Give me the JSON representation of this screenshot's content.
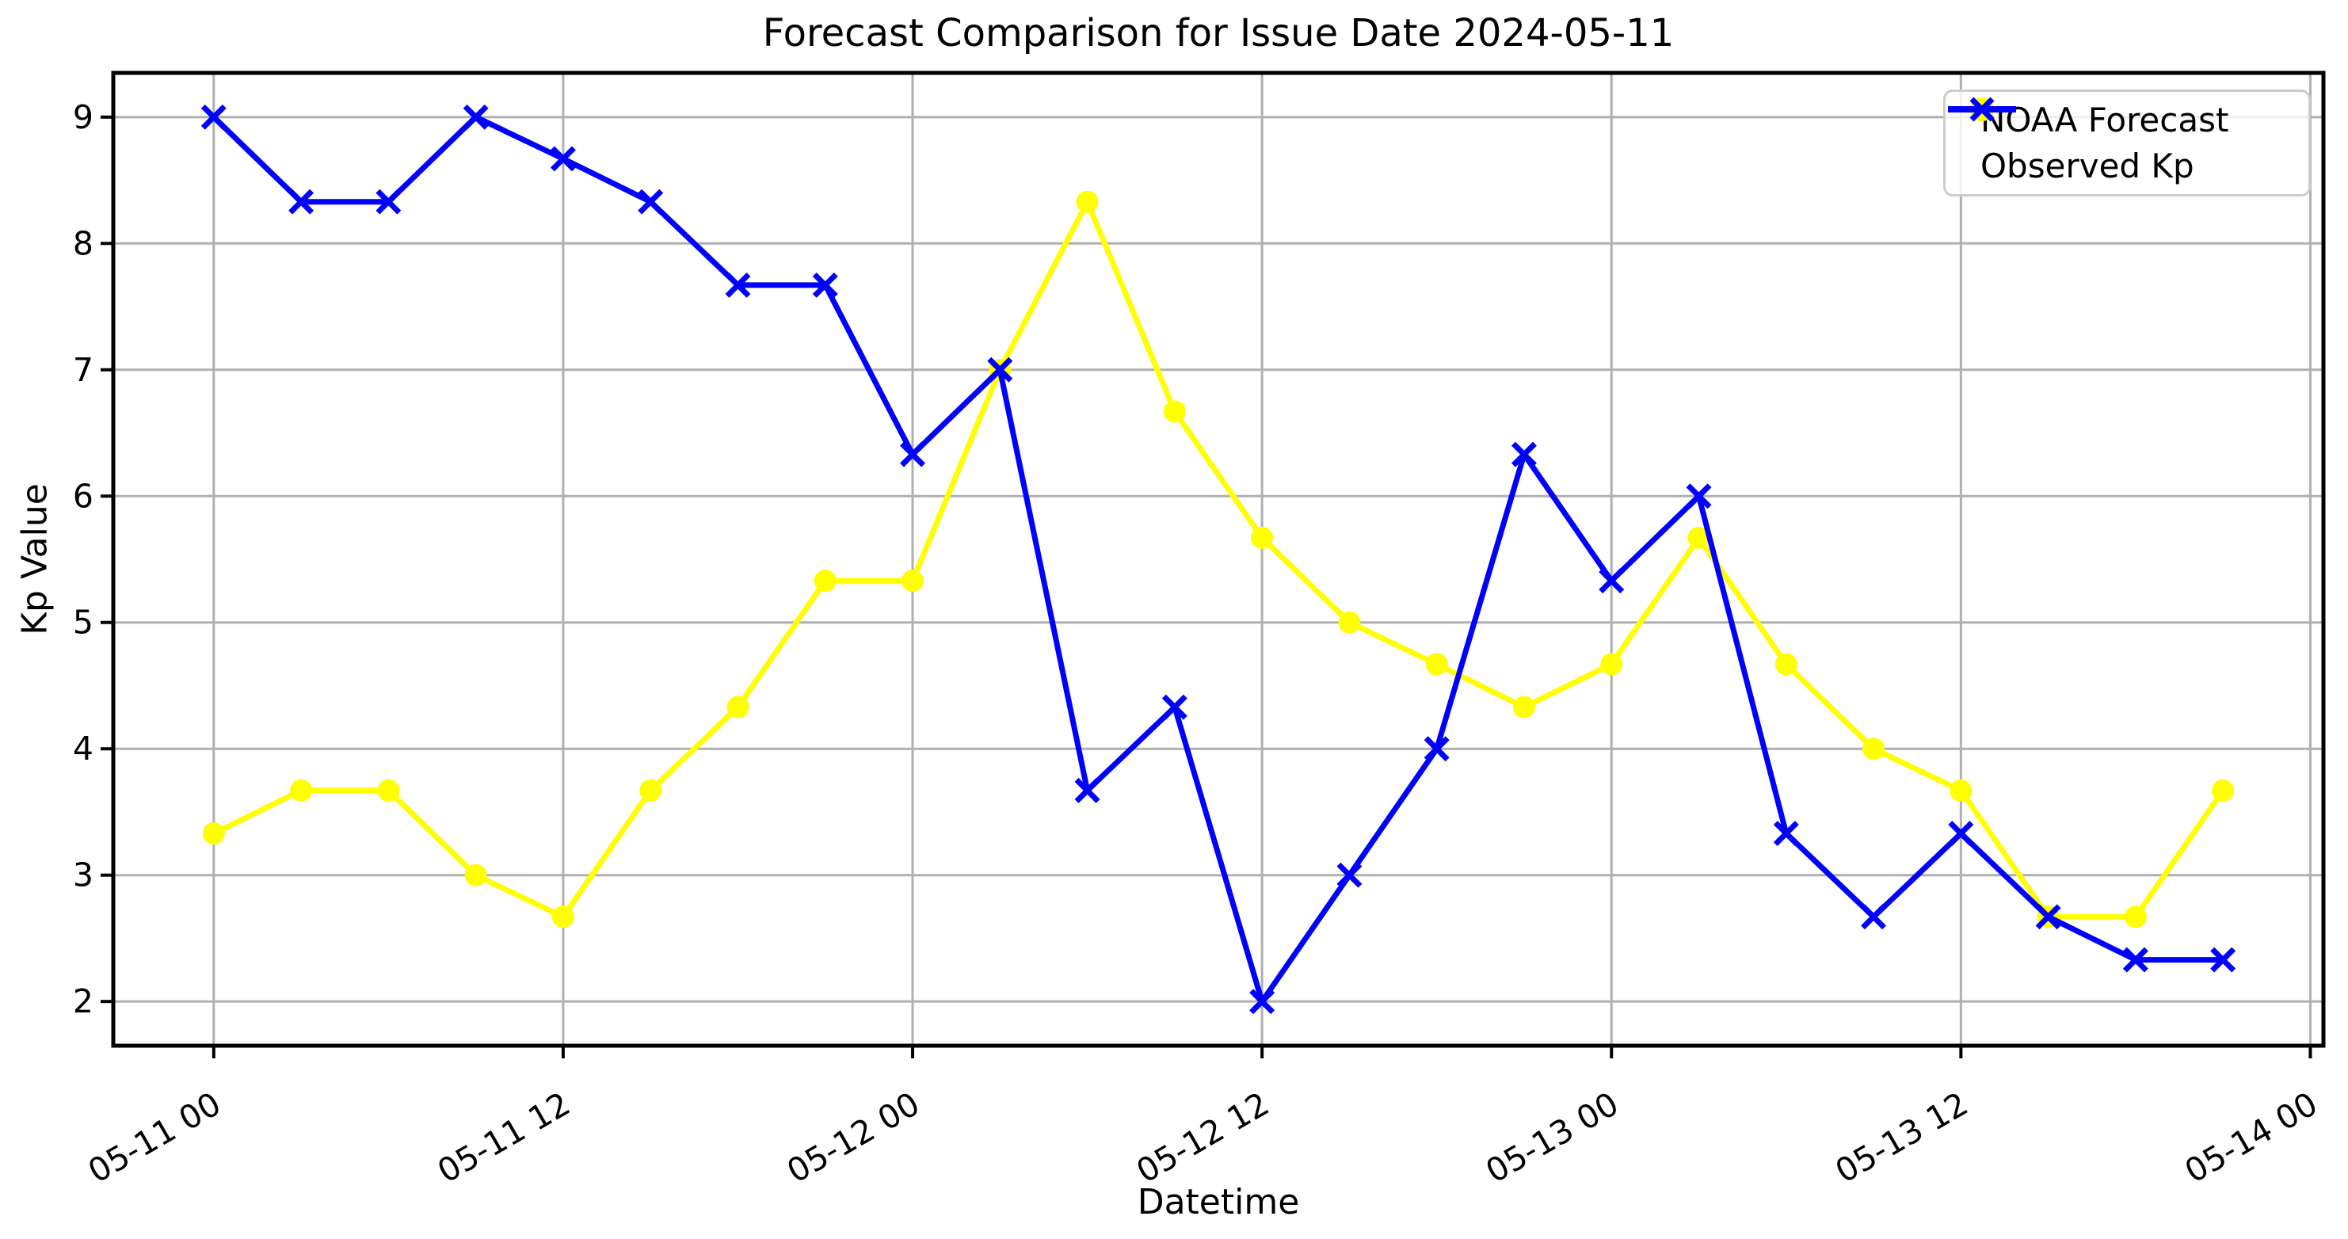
{
  "chart_data": {
    "type": "line",
    "title": "Forecast Comparison for Issue Date 2024-05-11",
    "xlabel": "Datetime",
    "ylabel": "Kp Value",
    "x": [
      "05-11 00",
      "05-11 03",
      "05-11 06",
      "05-11 09",
      "05-11 12",
      "05-11 15",
      "05-11 18",
      "05-11 21",
      "05-12 00",
      "05-12 03",
      "05-12 06",
      "05-12 09",
      "05-12 12",
      "05-12 15",
      "05-12 18",
      "05-12 21",
      "05-13 00",
      "05-13 03",
      "05-13 06",
      "05-13 09",
      "05-13 12",
      "05-13 15",
      "05-13 18",
      "05-13 21"
    ],
    "series": [
      {
        "name": "NOAA Forecast",
        "color": "#ffff00",
        "marker": "circle",
        "values": [
          3.33,
          3.67,
          3.67,
          3.0,
          2.67,
          3.67,
          4.33,
          5.33,
          5.33,
          7.0,
          8.33,
          6.67,
          5.67,
          5.0,
          4.67,
          4.33,
          4.67,
          5.67,
          4.67,
          4.0,
          3.67,
          2.67,
          2.67,
          3.67
        ]
      },
      {
        "name": "Observed Kp",
        "color": "#0000ff",
        "marker": "x",
        "values": [
          9.0,
          8.33,
          8.33,
          9.0,
          8.67,
          8.33,
          7.67,
          7.67,
          6.33,
          7.0,
          3.67,
          4.33,
          2.0,
          3.0,
          4.0,
          6.33,
          5.33,
          6.0,
          3.33,
          2.67,
          3.33,
          2.67,
          2.33,
          2.33
        ]
      }
    ],
    "x_tick_labels": [
      "05-11 00",
      "05-11 12",
      "05-12 00",
      "05-12 12",
      "05-13 00",
      "05-13 12",
      "05-14 00"
    ],
    "x_tick_hours": [
      0,
      12,
      24,
      36,
      48,
      60,
      72
    ],
    "x_tick_rotation_deg": 30,
    "y_ticks": [
      2,
      3,
      4,
      5,
      6,
      7,
      8,
      9
    ],
    "ylim": [
      1.65,
      9.35
    ],
    "grid": true,
    "grid_color": "#b0b0b0",
    "legend_position": "upper right",
    "text_color": "#000000",
    "background_color": "#ffffff"
  }
}
